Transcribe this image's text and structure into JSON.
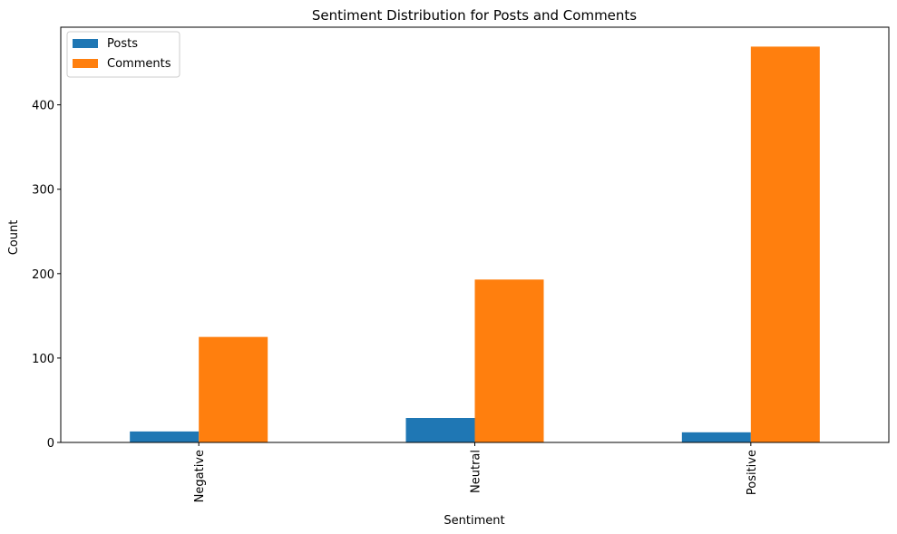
{
  "chart_data": {
    "type": "bar",
    "title": "Sentiment Distribution for Posts and Comments",
    "xlabel": "Sentiment",
    "ylabel": "Count",
    "categories": [
      "Negative",
      "Neutral",
      "Positive"
    ],
    "series": [
      {
        "name": "Posts",
        "values": [
          13,
          29,
          12
        ],
        "color": "#1f77b4"
      },
      {
        "name": "Comments",
        "values": [
          125,
          193,
          469
        ],
        "color": "#ff7f0e"
      }
    ],
    "ylim": [
      0,
      492
    ],
    "yticks": [
      0,
      100,
      200,
      300,
      400
    ],
    "grid": false,
    "legend_position": "top-left"
  }
}
